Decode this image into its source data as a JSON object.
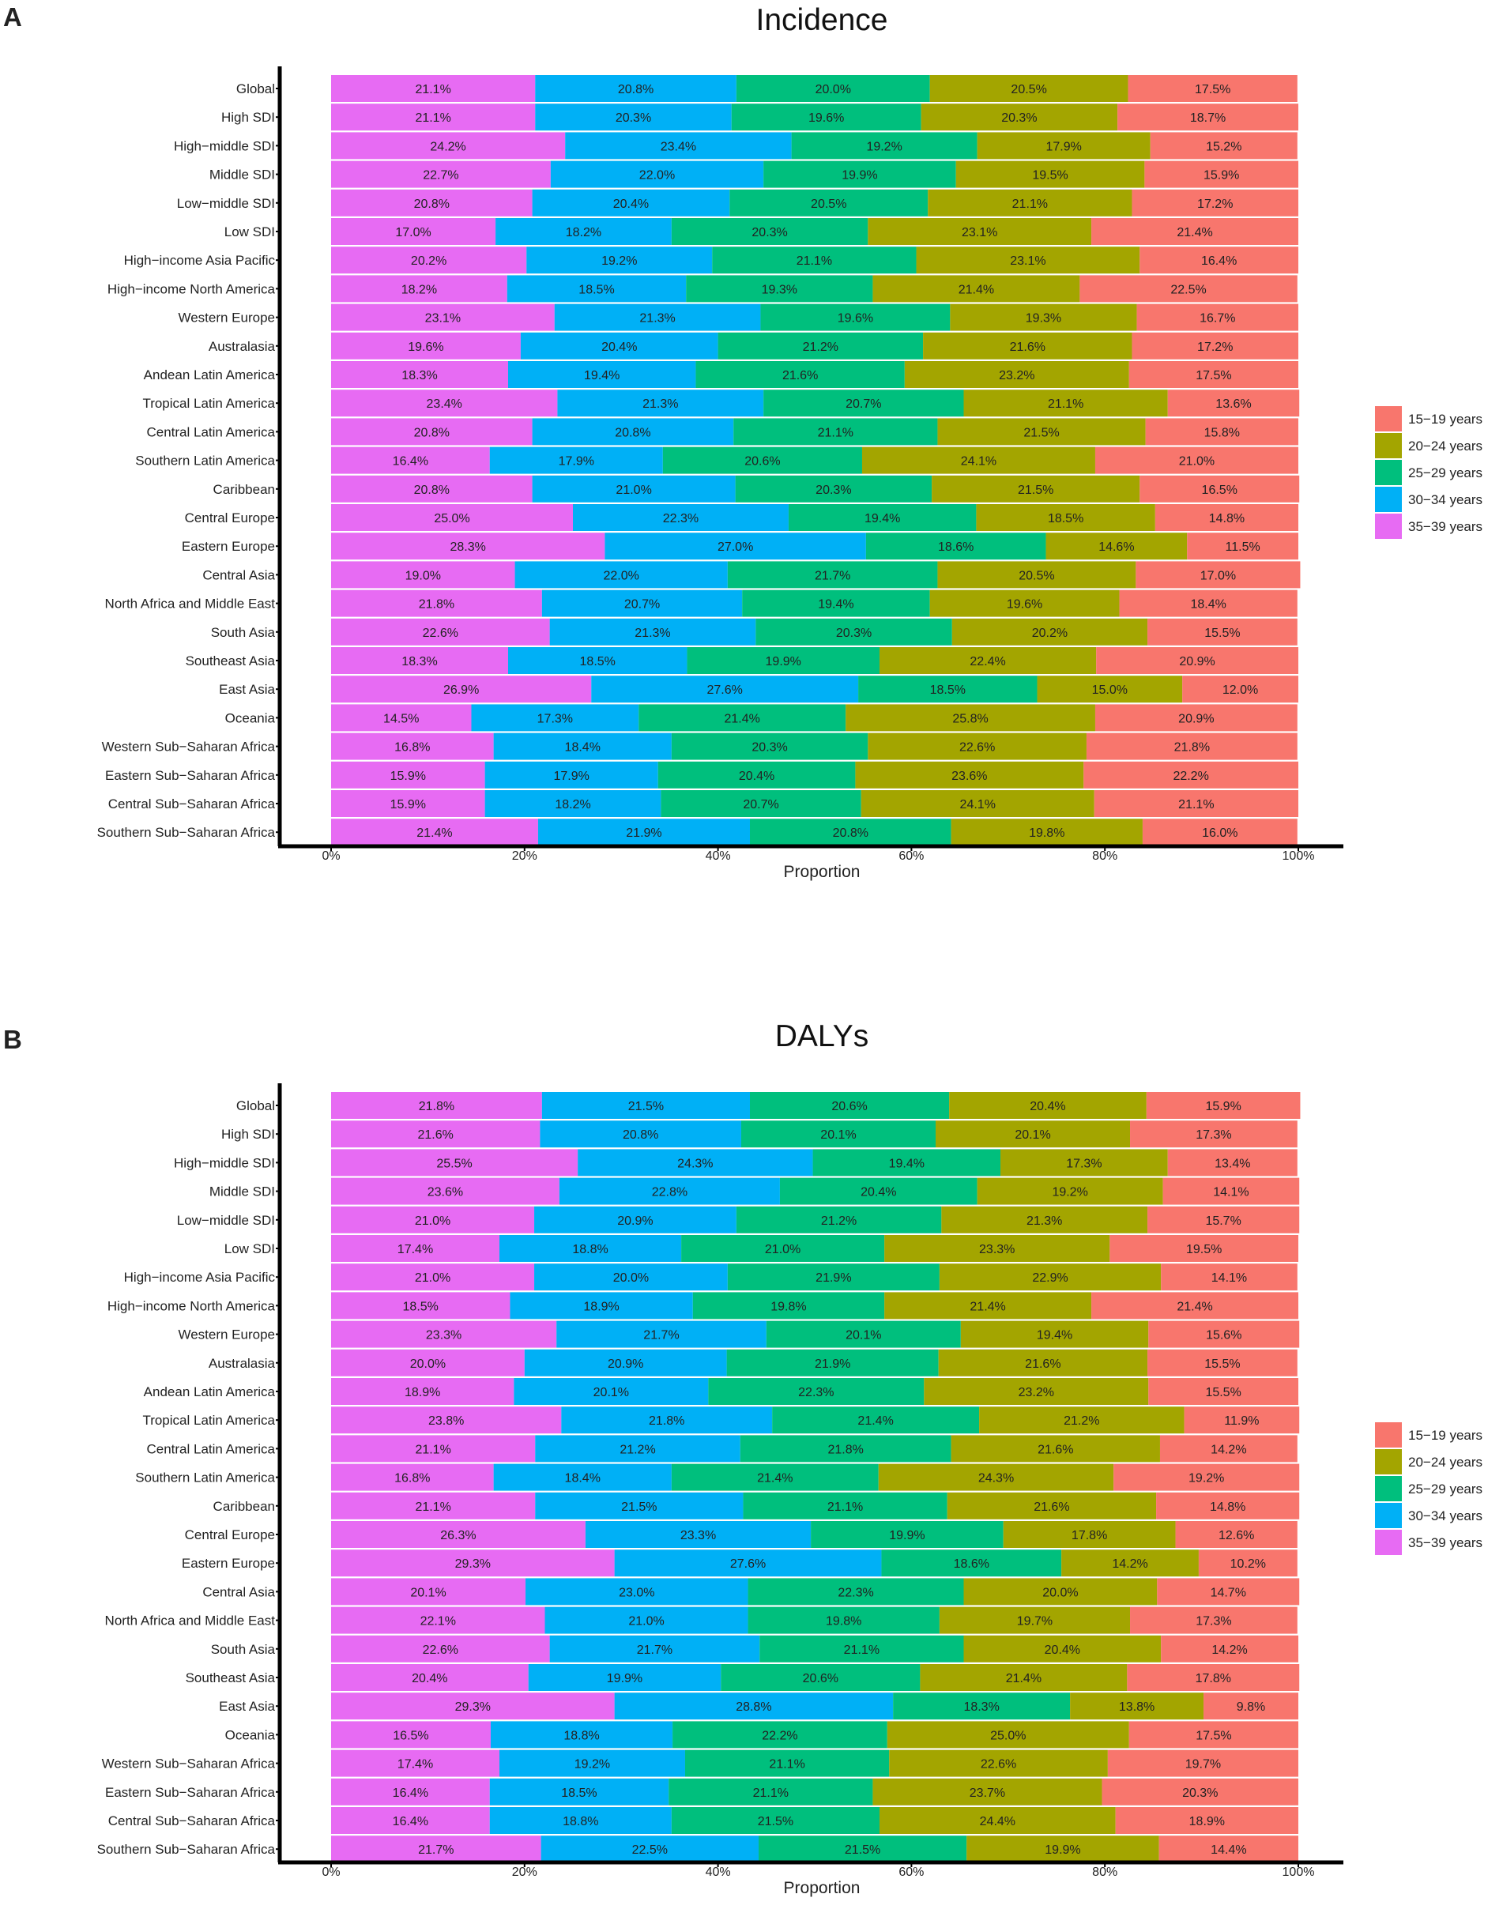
{
  "figure": {
    "panels": [
      {
        "letter": "A",
        "title": "Incidence",
        "xlabel": "Proportion"
      },
      {
        "letter": "B",
        "title": "DALYs",
        "xlabel": "Proportion"
      }
    ]
  },
  "colors": {
    "15-19 years": "#F8766D",
    "20-24 years": "#A3A500",
    "25-29 years": "#00BF7D",
    "30-34 years": "#00B0F6",
    "35-39 years": "#E76BF3"
  },
  "chart_data": [
    {
      "type": "bar",
      "orientation": "horizontal",
      "stacked": "100%",
      "title": "Incidence",
      "panel_label": "A",
      "xlabel": "Proportion",
      "ylabel": "",
      "xlim": [
        0,
        100
      ],
      "x_ticks": [
        "0%",
        "20%",
        "40%",
        "60%",
        "80%",
        "100%"
      ],
      "legend": {
        "position": "right",
        "entries": [
          "15−19 years",
          "20−24 years",
          "25−29 years",
          "30−34 years",
          "35−39 years"
        ]
      },
      "categories": [
        "Global",
        "High SDI",
        "High−middle SDI",
        "Middle SDI",
        "Low−middle SDI",
        "Low SDI",
        "High−income Asia Pacific",
        "High−income North America",
        "Western Europe",
        "Australasia",
        "Andean Latin America",
        "Tropical Latin America",
        "Central Latin America",
        "Southern Latin America",
        "Caribbean",
        "Central Europe",
        "Eastern Europe",
        "Central Asia",
        "North Africa and Middle East",
        "South Asia",
        "Southeast Asia",
        "East Asia",
        "Oceania",
        "Western Sub−Saharan Africa",
        "Eastern Sub−Saharan Africa",
        "Central Sub−Saharan Africa",
        "Southern Sub−Saharan Africa"
      ],
      "series": [
        {
          "name": "35−39 years",
          "key": "35-39 years",
          "values": [
            21.1,
            21.1,
            24.2,
            22.7,
            20.8,
            17.0,
            20.2,
            18.2,
            23.1,
            19.6,
            18.3,
            23.4,
            20.8,
            16.4,
            20.8,
            25.0,
            28.3,
            19.0,
            21.8,
            22.6,
            18.3,
            26.9,
            14.5,
            16.8,
            15.9,
            15.9,
            21.4
          ]
        },
        {
          "name": "30−34 years",
          "key": "30-34 years",
          "values": [
            20.8,
            20.3,
            23.4,
            22.0,
            20.4,
            18.2,
            19.2,
            18.5,
            21.3,
            20.4,
            19.4,
            21.3,
            20.8,
            17.9,
            21.0,
            22.3,
            27.0,
            22.0,
            20.7,
            21.3,
            18.5,
            27.6,
            17.3,
            18.4,
            17.9,
            18.2,
            21.9
          ]
        },
        {
          "name": "25−29 years",
          "key": "25-29 years",
          "values": [
            20.0,
            19.6,
            19.2,
            19.9,
            20.5,
            20.3,
            21.1,
            19.3,
            19.6,
            21.2,
            21.6,
            20.7,
            21.1,
            20.6,
            20.3,
            19.4,
            18.6,
            21.7,
            19.4,
            20.3,
            19.9,
            18.5,
            21.4,
            20.3,
            20.4,
            20.7,
            20.8
          ]
        },
        {
          "name": "20−24 years",
          "key": "20-24 years",
          "values": [
            20.5,
            20.3,
            17.9,
            19.5,
            21.1,
            23.1,
            23.1,
            21.4,
            19.3,
            21.6,
            23.2,
            21.1,
            21.5,
            24.1,
            21.5,
            18.5,
            14.6,
            20.5,
            19.6,
            20.2,
            22.4,
            15.0,
            25.8,
            22.6,
            23.6,
            24.1,
            19.8
          ]
        },
        {
          "name": "15−19 years",
          "key": "15-19 years",
          "values": [
            17.5,
            18.7,
            15.2,
            15.9,
            17.2,
            21.4,
            16.4,
            22.5,
            16.7,
            17.2,
            17.5,
            13.6,
            15.8,
            21.0,
            16.5,
            14.8,
            11.5,
            17.0,
            18.4,
            15.5,
            20.9,
            12.0,
            20.9,
            21.8,
            22.2,
            21.1,
            16.0
          ]
        }
      ]
    },
    {
      "type": "bar",
      "orientation": "horizontal",
      "stacked": "100%",
      "title": "DALYs",
      "panel_label": "B",
      "xlabel": "Proportion",
      "ylabel": "",
      "xlim": [
        0,
        100
      ],
      "x_ticks": [
        "0%",
        "20%",
        "40%",
        "60%",
        "80%",
        "100%"
      ],
      "legend": {
        "position": "right",
        "entries": [
          "15−19 years",
          "20−24 years",
          "25−29 years",
          "30−34 years",
          "35−39 years"
        ]
      },
      "categories": [
        "Global",
        "High SDI",
        "High−middle SDI",
        "Middle SDI",
        "Low−middle SDI",
        "Low SDI",
        "High−income Asia Pacific",
        "High−income North America",
        "Western Europe",
        "Australasia",
        "Andean Latin America",
        "Tropical Latin America",
        "Central Latin America",
        "Southern Latin America",
        "Caribbean",
        "Central Europe",
        "Eastern Europe",
        "Central Asia",
        "North Africa and Middle East",
        "South Asia",
        "Southeast Asia",
        "East Asia",
        "Oceania",
        "Western Sub−Saharan Africa",
        "Eastern Sub−Saharan Africa",
        "Central Sub−Saharan Africa",
        "Southern Sub−Saharan Africa"
      ],
      "series": [
        {
          "name": "35−39 years",
          "key": "35-39 years",
          "values": [
            21.8,
            21.6,
            25.5,
            23.6,
            21.0,
            17.4,
            21.0,
            18.5,
            23.3,
            20.0,
            18.9,
            23.8,
            21.1,
            16.8,
            21.1,
            26.3,
            29.3,
            20.1,
            22.1,
            22.6,
            20.4,
            29.3,
            16.5,
            17.4,
            16.4,
            16.4,
            21.7
          ]
        },
        {
          "name": "30−34 years",
          "key": "30-34 years",
          "values": [
            21.5,
            20.8,
            24.3,
            22.8,
            20.9,
            18.8,
            20.0,
            18.9,
            21.7,
            20.9,
            20.1,
            21.8,
            21.2,
            18.4,
            21.5,
            23.3,
            27.6,
            23.0,
            21.0,
            21.7,
            19.9,
            28.8,
            18.8,
            19.2,
            18.5,
            18.8,
            22.5
          ]
        },
        {
          "name": "25−29 years",
          "key": "25-29 years",
          "values": [
            20.6,
            20.1,
            19.4,
            20.4,
            21.2,
            21.0,
            21.9,
            19.8,
            20.1,
            21.9,
            22.3,
            21.4,
            21.8,
            21.4,
            21.1,
            19.9,
            18.6,
            22.3,
            19.8,
            21.1,
            20.6,
            18.3,
            22.2,
            21.1,
            21.1,
            21.5,
            21.5
          ]
        },
        {
          "name": "20−24 years",
          "key": "20-24 years",
          "values": [
            20.4,
            20.1,
            17.3,
            19.2,
            21.3,
            23.3,
            22.9,
            21.4,
            19.4,
            21.6,
            23.2,
            21.2,
            21.6,
            24.3,
            21.6,
            17.8,
            14.2,
            20.0,
            19.7,
            20.4,
            21.4,
            13.8,
            25.0,
            22.6,
            23.7,
            24.4,
            19.9
          ]
        },
        {
          "name": "15−19 years",
          "key": "15-19 years",
          "values": [
            15.9,
            17.3,
            13.4,
            14.1,
            15.7,
            19.5,
            14.1,
            21.4,
            15.6,
            15.5,
            15.5,
            11.9,
            14.2,
            19.2,
            14.8,
            12.6,
            10.2,
            14.7,
            17.3,
            14.2,
            17.8,
            9.8,
            17.5,
            19.7,
            20.3,
            18.9,
            14.4
          ]
        }
      ]
    }
  ]
}
